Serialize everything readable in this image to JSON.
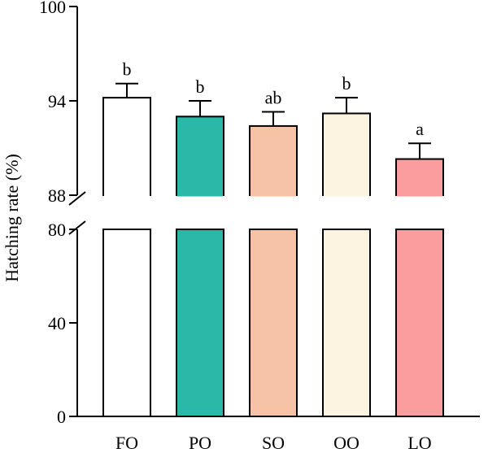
{
  "chart_data": {
    "type": "bar",
    "ylabel": "Hatching rate (%)",
    "categories": [
      "FO",
      "PO",
      "SO",
      "OO",
      "LO"
    ],
    "values": [
      94.2,
      93.0,
      92.4,
      93.2,
      90.3
    ],
    "errors": [
      0.9,
      1.0,
      0.9,
      1.0,
      1.0
    ],
    "significance": [
      "b",
      "b",
      "ab",
      "b",
      "a"
    ],
    "colors": [
      "#ffffff",
      "#2bb8a8",
      "#f7c3a6",
      "#fdf3e1",
      "#fb9d9f"
    ],
    "axis_break": true,
    "segments": [
      {
        "ylim": [
          0,
          80
        ],
        "ticks": [
          0,
          40,
          80
        ]
      },
      {
        "ylim": [
          88,
          100
        ],
        "ticks": [
          88,
          94,
          100
        ]
      }
    ],
    "tick_labels": [
      "0",
      "40",
      "80",
      "88",
      "94",
      "100"
    ]
  }
}
